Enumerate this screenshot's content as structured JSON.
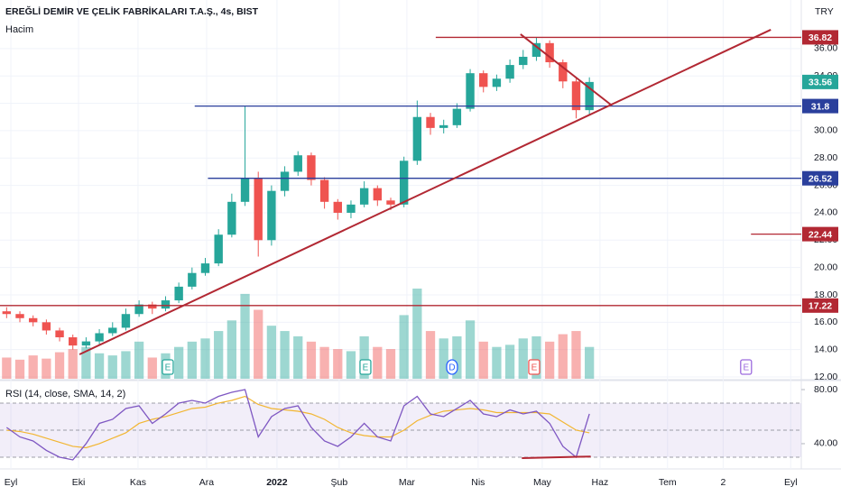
{
  "chart_data": {
    "type": "candlestick",
    "title": "EREĞLİ DEMİR VE ÇELİK FABRİKALARI T.A.Ş., 4s, BIST",
    "currency": "TRY",
    "x": [
      0,
      1,
      2,
      3,
      4,
      5,
      6,
      7,
      8,
      9,
      10,
      11,
      12,
      13,
      14,
      15,
      16,
      17,
      18,
      19,
      20,
      21,
      22,
      23,
      24,
      25,
      26,
      27,
      28,
      29,
      30,
      31,
      32,
      33,
      34,
      35,
      36,
      37,
      38,
      39,
      40,
      41,
      42,
      43,
      44
    ],
    "open": [
      16.8,
      16.6,
      16.3,
      16.0,
      15.4,
      14.9,
      14.3,
      14.6,
      15.2,
      15.6,
      16.6,
      17.3,
      17.0,
      17.6,
      18.6,
      19.6,
      20.3,
      22.4,
      24.8,
      26.5,
      22.0,
      25.6,
      27.0,
      28.2,
      26.4,
      24.8,
      24.0,
      24.6,
      25.8,
      24.9,
      24.6,
      27.8,
      31.0,
      30.2,
      30.4,
      31.6,
      34.2,
      33.2,
      33.8,
      34.8,
      35.4,
      36.4,
      35.0,
      33.6,
      31.5
    ],
    "high": [
      17.1,
      16.8,
      16.5,
      16.2,
      15.6,
      15.1,
      14.9,
      15.5,
      16.0,
      17.0,
      17.6,
      17.5,
      17.9,
      18.9,
      20.0,
      20.7,
      22.8,
      25.4,
      31.8,
      27.0,
      26.0,
      27.4,
      28.5,
      28.4,
      26.6,
      25.0,
      24.9,
      26.3,
      26.0,
      25.1,
      28.1,
      32.2,
      31.3,
      30.8,
      32.0,
      34.5,
      34.4,
      34.1,
      35.2,
      35.9,
      36.82,
      36.6,
      35.2,
      33.8,
      33.9
    ],
    "low": [
      16.3,
      16.0,
      15.7,
      15.1,
      14.6,
      14.0,
      14.1,
      14.4,
      15.0,
      15.4,
      16.4,
      16.6,
      16.8,
      17.4,
      18.4,
      19.4,
      20.1,
      22.2,
      24.5,
      20.8,
      21.6,
      25.2,
      26.7,
      26.0,
      24.3,
      23.5,
      23.6,
      24.4,
      24.5,
      24.2,
      24.4,
      27.5,
      29.7,
      29.8,
      30.2,
      31.4,
      32.8,
      32.9,
      33.5,
      34.5,
      35.1,
      34.6,
      33.1,
      30.9,
      31.2
    ],
    "close": [
      16.6,
      16.3,
      16.0,
      15.4,
      14.9,
      14.3,
      14.6,
      15.2,
      15.6,
      16.6,
      17.3,
      17.0,
      17.6,
      18.6,
      19.6,
      20.3,
      22.4,
      24.8,
      26.5,
      22.0,
      25.6,
      27.0,
      28.2,
      26.4,
      24.8,
      24.0,
      24.6,
      25.8,
      24.9,
      24.6,
      27.8,
      31.0,
      30.2,
      30.4,
      31.6,
      34.2,
      33.2,
      33.8,
      34.8,
      35.4,
      36.4,
      35.0,
      33.6,
      31.5,
      33.56
    ],
    "up_color": "#26a69a",
    "down_color": "#ef5350",
    "volume": {
      "name": "Hacim",
      "values": [
        20,
        18,
        22,
        19,
        25,
        28,
        30,
        24,
        22,
        26,
        35,
        20,
        24,
        30,
        35,
        38,
        45,
        55,
        80,
        65,
        50,
        45,
        40,
        35,
        30,
        28,
        26,
        40,
        30,
        28,
        60,
        85,
        45,
        38,
        40,
        55,
        35,
        30,
        32,
        38,
        40,
        35,
        42,
        45,
        30
      ]
    },
    "ylim": [
      11.87,
      39.55
    ],
    "yticks": [
      {
        "value": 12,
        "label": "12.00"
      },
      {
        "value": 14,
        "label": "14.00"
      },
      {
        "value": 16,
        "label": "16.00"
      },
      {
        "value": 18,
        "label": "18.00"
      },
      {
        "value": 20,
        "label": "20.00"
      },
      {
        "value": 22,
        "label": "22.00"
      },
      {
        "value": 24,
        "label": "24.00"
      },
      {
        "value": 26,
        "label": "26.00"
      },
      {
        "value": 28,
        "label": "28.00"
      },
      {
        "value": 30,
        "label": "30.00"
      },
      {
        "value": 32,
        "label": "32.00"
      },
      {
        "value": 34,
        "label": "34.00"
      },
      {
        "value": 36,
        "label": "36.00"
      }
    ],
    "xlim": [
      -0.5,
      60
    ],
    "xticks": [
      {
        "value": 0.32,
        "label": "Eyl"
      },
      {
        "value": 5.43,
        "label": "Eki"
      },
      {
        "value": 9.92,
        "label": "Kas"
      },
      {
        "value": 15.1,
        "label": "Ara"
      },
      {
        "value": 20.41,
        "label": "2022"
      },
      {
        "value": 25.11,
        "label": "Şub"
      },
      {
        "value": 30.22,
        "label": "Mar"
      },
      {
        "value": 35.6,
        "label": "Nis"
      },
      {
        "value": 40.44,
        "label": "May"
      },
      {
        "value": 44.8,
        "label": "Haz"
      },
      {
        "value": 49.9,
        "label": "Tem"
      },
      {
        "value": 54.1,
        "label": "2"
      },
      {
        "value": 59.2,
        "label": "Eyl"
      }
    ],
    "levels": [
      {
        "value": 36.82,
        "from": 32.4,
        "color": "#b22833"
      },
      {
        "value": 31.8,
        "from": 14.2,
        "color": "#2a3f9c"
      },
      {
        "value": 26.52,
        "from": 15.2,
        "color": "#2a3f9c"
      },
      {
        "value": 22.44,
        "from": 56.2,
        "color": "#b22833"
      },
      {
        "value": 17.22,
        "from": -0.5,
        "color": "#b22833"
      }
    ],
    "last_color": "#26a69a",
    "trendlines": [
      {
        "x": [
          5.5,
          57.7
        ],
        "y": [
          13.65,
          37.38
        ],
        "color": "#b22833"
      },
      {
        "x": [
          38.8,
          45.7
        ],
        "y": [
          37.05,
          31.84
        ],
        "color": "#b22833"
      }
    ],
    "events": [
      {
        "x": 12.17,
        "label": "E",
        "color": "#26a69a"
      },
      {
        "x": 27.09,
        "label": "E",
        "color": "#26a69a"
      },
      {
        "x": 33.63,
        "label": "D",
        "color": "#2962ff"
      },
      {
        "x": 39.83,
        "label": "E",
        "color": "#ef5350"
      },
      {
        "x": 55.83,
        "label": "E",
        "color": "#9c6ade"
      }
    ],
    "rsi": {
      "title": "RSI (14, close, SMA, 14, 2)",
      "color": "#7e57c2",
      "sma_color": "#f2b632",
      "values": [
        52,
        45,
        42,
        35,
        30,
        28,
        40,
        55,
        58,
        66,
        68,
        55,
        62,
        70,
        72,
        70,
        75,
        78,
        80,
        45,
        60,
        66,
        68,
        52,
        42,
        38,
        45,
        55,
        45,
        42,
        68,
        75,
        62,
        60,
        66,
        72,
        62,
        60,
        65,
        62,
        64,
        55,
        38,
        30,
        62
      ],
      "sma": [
        50,
        49,
        47,
        44,
        41,
        38,
        37,
        40,
        44,
        48,
        55,
        58,
        60,
        63,
        66,
        67,
        70,
        72,
        75,
        69,
        66,
        65,
        64,
        62,
        58,
        52,
        48,
        46,
        45,
        45,
        50,
        57,
        61,
        64,
        65,
        66,
        65,
        63,
        63,
        63,
        63,
        62,
        56,
        50,
        48
      ],
      "ylim": [
        21.3,
        86
      ],
      "yticks": [
        {
          "value": 80,
          "label": "80.00"
        },
        {
          "value": 40,
          "label": "40.00"
        }
      ],
      "bands": [
        70,
        50,
        30
      ],
      "divergence": {
        "x": [
          38.9,
          44.1
        ],
        "y": [
          29.3,
          30.5
        ],
        "color": "#b22833"
      }
    }
  }
}
